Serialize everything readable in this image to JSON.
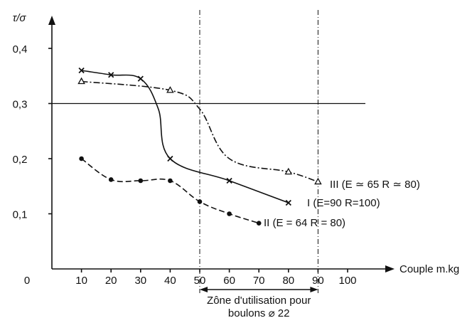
{
  "chart_data": {
    "type": "line",
    "ylabel": "τ/σ",
    "xlabel": "Couple m.kg",
    "origin_label": "0",
    "x_ticks": [
      10,
      20,
      30,
      40,
      50,
      60,
      70,
      80,
      90,
      100
    ],
    "x_tick_labels": [
      "10",
      "20",
      "30",
      "40",
      "50",
      "60",
      "70",
      "80",
      "90",
      "100"
    ],
    "y_ticks": [
      0.1,
      0.2,
      0.3,
      0.4
    ],
    "y_tick_labels": [
      "0,1",
      "0,2",
      "0,3",
      "0,4"
    ],
    "xlim": [
      0,
      105
    ],
    "ylim": [
      0,
      0.45
    ],
    "reference_line_y": 0.3,
    "zone": {
      "x_start": 50,
      "x_end": 90,
      "label_line1": "Zône d'utilisation pour",
      "label_line2": "boulons ⌀ 22"
    },
    "series": [
      {
        "name": "I (E=90   R=100)",
        "marker": "x",
        "dash": "solid",
        "x": [
          10,
          20,
          30,
          36,
          40,
          60,
          80
        ],
        "y": [
          0.36,
          0.352,
          0.345,
          0.29,
          0.2,
          0.16,
          0.12
        ],
        "marker_x": [
          10,
          20,
          30,
          40,
          60,
          80
        ],
        "marker_y": [
          0.36,
          0.352,
          0.345,
          0.2,
          0.16,
          0.12
        ]
      },
      {
        "name": "II (E = 64   R = 80)",
        "marker": "dot",
        "dash": "dashed",
        "x": [
          10,
          20,
          30,
          40,
          50,
          60,
          70
        ],
        "y": [
          0.2,
          0.162,
          0.16,
          0.16,
          0.122,
          0.1,
          0.083
        ],
        "marker_x": [
          10,
          20,
          30,
          40,
          50,
          60,
          70
        ],
        "marker_y": [
          0.2,
          0.162,
          0.16,
          0.16,
          0.122,
          0.1,
          0.083
        ]
      },
      {
        "name": "III (E ≃ 65   R ≃ 80)",
        "marker": "triangle",
        "dash": "dashdot",
        "x": [
          10,
          40,
          50,
          60,
          80,
          90
        ],
        "y": [
          0.34,
          0.324,
          0.29,
          0.2,
          0.176,
          0.158
        ],
        "marker_x": [
          10,
          40,
          80,
          90
        ],
        "marker_y": [
          0.34,
          0.324,
          0.176,
          0.158
        ]
      }
    ]
  }
}
